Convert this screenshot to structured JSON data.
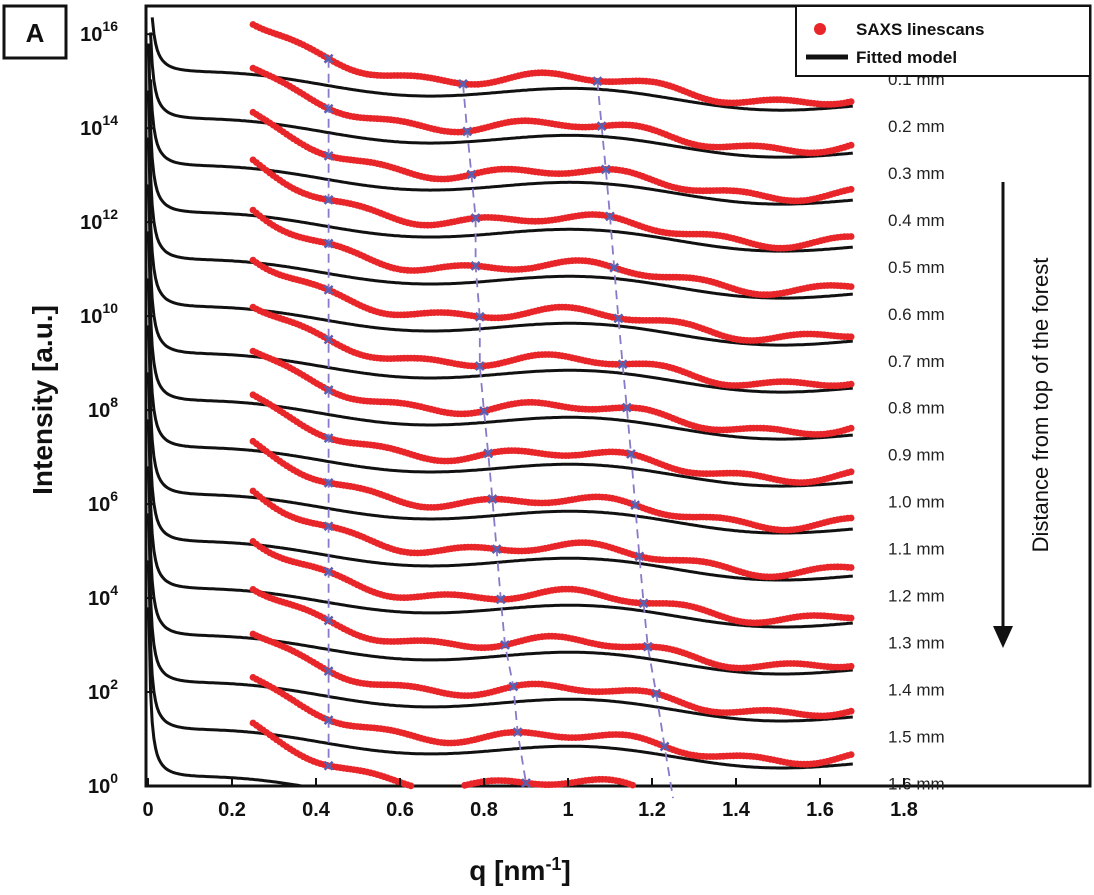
{
  "panel_label": "A",
  "chart_data": {
    "type": "scatter",
    "xlabel": "q [nm",
    "xlabel_sup": "-1",
    "xlabel_close": "]",
    "ylabel": "Intensity [a.u.]",
    "xlim": [
      0,
      1.85
    ],
    "ylog_range": [
      0,
      16.6
    ],
    "y_scale": "log",
    "x_ticks": [
      "0",
      "0.2",
      "0.4",
      "0.6",
      "0.8",
      "1",
      "1.2",
      "1.4",
      "1.6",
      "1.8"
    ],
    "y_ticks": [
      {
        "base": "10",
        "exp": "16",
        "log": 16
      },
      {
        "base": "10",
        "exp": "14",
        "log": 14
      },
      {
        "base": "10",
        "exp": "12",
        "log": 12
      },
      {
        "base": "10",
        "exp": "10",
        "log": 10
      },
      {
        "base": "10",
        "exp": "8",
        "log": 8
      },
      {
        "base": "10",
        "exp": "6",
        "log": 6
      },
      {
        "base": "10",
        "exp": "4",
        "log": 4
      },
      {
        "base": "10",
        "exp": "2",
        "log": 2
      },
      {
        "base": "10",
        "exp": "0",
        "log": 0
      }
    ],
    "legend": {
      "position": "top-right",
      "entries": [
        {
          "label": "SAXS linescans",
          "marker": "dot",
          "color": "#e8262a"
        },
        {
          "label": "Fitted model",
          "marker": "line",
          "color": "#111111"
        }
      ]
    },
    "series_colors": {
      "data": "#e8262a",
      "fit": "#111111",
      "peaks": "#5a5fb0",
      "guides": "#8a78c8"
    },
    "annotation": "Distance from top of the forest",
    "series": [
      {
        "name": "0.1 mm",
        "base_log": 15.05,
        "peaks": [
          0.43,
          0.75,
          1.07
        ]
      },
      {
        "name": "0.2 mm",
        "base_log": 14.05,
        "peaks": [
          0.43,
          0.76,
          1.08
        ]
      },
      {
        "name": "0.3 mm",
        "base_log": 13.05,
        "peaks": [
          0.43,
          0.77,
          1.09
        ]
      },
      {
        "name": "0.4 mm",
        "base_log": 12.05,
        "peaks": [
          0.43,
          0.78,
          1.1
        ]
      },
      {
        "name": "0.5 mm",
        "base_log": 11.05,
        "peaks": [
          0.43,
          0.78,
          1.11
        ]
      },
      {
        "name": "0.6 mm",
        "base_log": 10.05,
        "peaks": [
          0.43,
          0.79,
          1.12
        ]
      },
      {
        "name": "0.7 mm",
        "base_log": 9.05,
        "peaks": [
          0.43,
          0.79,
          1.13
        ]
      },
      {
        "name": "0.8 mm",
        "base_log": 8.05,
        "peaks": [
          0.43,
          0.8,
          1.14
        ]
      },
      {
        "name": "0.9 mm",
        "base_log": 7.05,
        "peaks": [
          0.43,
          0.81,
          1.15
        ]
      },
      {
        "name": "1.0 mm",
        "base_log": 6.05,
        "peaks": [
          0.43,
          0.82,
          1.16
        ]
      },
      {
        "name": "1.1 mm",
        "base_log": 5.05,
        "peaks": [
          0.43,
          0.83,
          1.17
        ]
      },
      {
        "name": "1.2 mm",
        "base_log": 4.05,
        "peaks": [
          0.43,
          0.84,
          1.18
        ]
      },
      {
        "name": "1.3 mm",
        "base_log": 3.05,
        "peaks": [
          0.43,
          0.85,
          1.19
        ]
      },
      {
        "name": "1.4 mm",
        "base_log": 2.05,
        "peaks": [
          0.43,
          0.87,
          1.21
        ]
      },
      {
        "name": "1.5 mm",
        "base_log": 1.05,
        "peaks": [
          0.43,
          0.88,
          1.23
        ]
      },
      {
        "name": "1.6 mm",
        "base_log": 0.05,
        "peaks": [
          0.43,
          0.9,
          1.25
        ]
      }
    ]
  }
}
